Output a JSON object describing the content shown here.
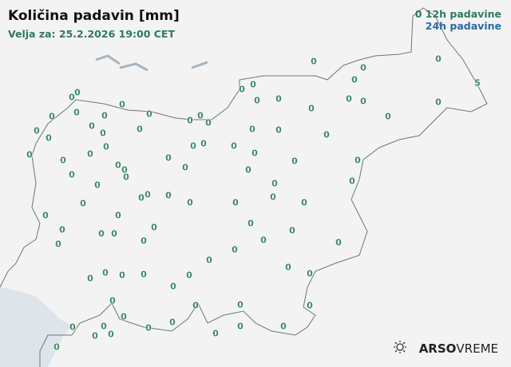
{
  "header": {
    "title": "Količina padavin [mm]",
    "valid_for": "Velja za: 25.2.2026 19:00 CET"
  },
  "legend": {
    "item_12h": "0 12h padavine",
    "item_24h": "24h padavine",
    "color_12h": "#2e7a5a",
    "color_24h": "#2a6aa0"
  },
  "stations": [
    [
      "0",
      393,
      77
    ],
    [
      "0",
      455,
      85
    ],
    [
      "0",
      549,
      74
    ],
    [
      "0",
      444,
      100
    ],
    [
      "5",
      598,
      104
    ],
    [
      "0",
      303,
      112
    ],
    [
      "0",
      317,
      106
    ],
    [
      "0",
      322,
      126
    ],
    [
      "0",
      349,
      124
    ],
    [
      "0",
      390,
      136
    ],
    [
      "0",
      437,
      124
    ],
    [
      "0",
      455,
      127
    ],
    [
      "0",
      486,
      146
    ],
    [
      "0",
      549,
      128
    ],
    [
      "0",
      90,
      122
    ],
    [
      "0",
      97,
      116
    ],
    [
      "0",
      153,
      131
    ],
    [
      "0",
      65,
      146
    ],
    [
      "0",
      96,
      141
    ],
    [
      "0",
      131,
      145
    ],
    [
      "0",
      187,
      143
    ],
    [
      "0",
      238,
      151
    ],
    [
      "0",
      251,
      145
    ],
    [
      "0",
      261,
      154
    ],
    [
      "0",
      46,
      164
    ],
    [
      "0",
      61,
      173
    ],
    [
      "0",
      115,
      158
    ],
    [
      "0",
      129,
      167
    ],
    [
      "0",
      175,
      162
    ],
    [
      "0",
      316,
      162
    ],
    [
      "0",
      349,
      163
    ],
    [
      "0",
      409,
      169
    ],
    [
      "0",
      37,
      194
    ],
    [
      "0",
      79,
      201
    ],
    [
      "0",
      113,
      193
    ],
    [
      "0",
      133,
      184
    ],
    [
      "0",
      242,
      183
    ],
    [
      "0",
      255,
      180
    ],
    [
      "0",
      293,
      183
    ],
    [
      "0",
      319,
      192
    ],
    [
      "0",
      211,
      198
    ],
    [
      "0",
      232,
      210
    ],
    [
      "0",
      148,
      207
    ],
    [
      "0",
      156,
      213
    ],
    [
      "0",
      158,
      222
    ],
    [
      "0",
      90,
      219
    ],
    [
      "0",
      311,
      213
    ],
    [
      "0",
      369,
      202
    ],
    [
      "0",
      448,
      201
    ],
    [
      "0",
      441,
      227
    ],
    [
      "0",
      122,
      232
    ],
    [
      "0",
      185,
      244
    ],
    [
      "0",
      177,
      248
    ],
    [
      "0",
      211,
      245
    ],
    [
      "0",
      238,
      254
    ],
    [
      "0",
      295,
      254
    ],
    [
      "0",
      344,
      230
    ],
    [
      "0",
      342,
      247
    ],
    [
      "0",
      381,
      254
    ],
    [
      "0",
      104,
      255
    ],
    [
      "0",
      57,
      270
    ],
    [
      "0",
      148,
      270
    ],
    [
      "0",
      314,
      280
    ],
    [
      "0",
      78,
      288
    ],
    [
      "0",
      127,
      293
    ],
    [
      "0",
      143,
      293
    ],
    [
      "0",
      193,
      285
    ],
    [
      "0",
      366,
      289
    ],
    [
      "0",
      73,
      306
    ],
    [
      "0",
      180,
      302
    ],
    [
      "0",
      330,
      301
    ],
    [
      "0",
      424,
      304
    ],
    [
      "0",
      294,
      313
    ],
    [
      "0",
      262,
      326
    ],
    [
      "0",
      113,
      349
    ],
    [
      "0",
      132,
      342
    ],
    [
      "0",
      153,
      345
    ],
    [
      "0",
      180,
      344
    ],
    [
      "0",
      237,
      345
    ],
    [
      "0",
      217,
      359
    ],
    [
      "0",
      361,
      335
    ],
    [
      "0",
      388,
      343
    ],
    [
      "0",
      141,
      377
    ],
    [
      "0",
      245,
      383
    ],
    [
      "0",
      301,
      382
    ],
    [
      "0",
      388,
      383
    ],
    [
      "0",
      155,
      397
    ],
    [
      "0",
      130,
      409
    ],
    [
      "0",
      91,
      410
    ],
    [
      "0",
      216,
      404
    ],
    [
      "0",
      186,
      411
    ],
    [
      "0",
      119,
      421
    ],
    [
      "0",
      139,
      419
    ],
    [
      "0",
      301,
      409
    ],
    [
      "0",
      355,
      409
    ],
    [
      "0",
      270,
      418
    ],
    [
      "0",
      71,
      435
    ]
  ],
  "logo": {
    "bold": "ARSO",
    "light": "VREME",
    "icon": "sun-rain-icon"
  },
  "colors": {
    "sea": "#dde4ea",
    "border": "#6b7680",
    "value": "#3f8a66"
  }
}
